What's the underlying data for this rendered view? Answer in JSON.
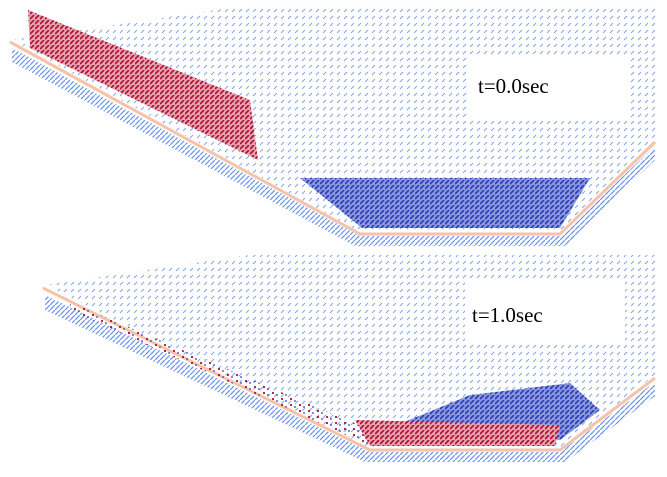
{
  "panels": [
    {
      "label": "t=0.0sec"
    },
    {
      "label": "t=1.0sec"
    }
  ]
}
